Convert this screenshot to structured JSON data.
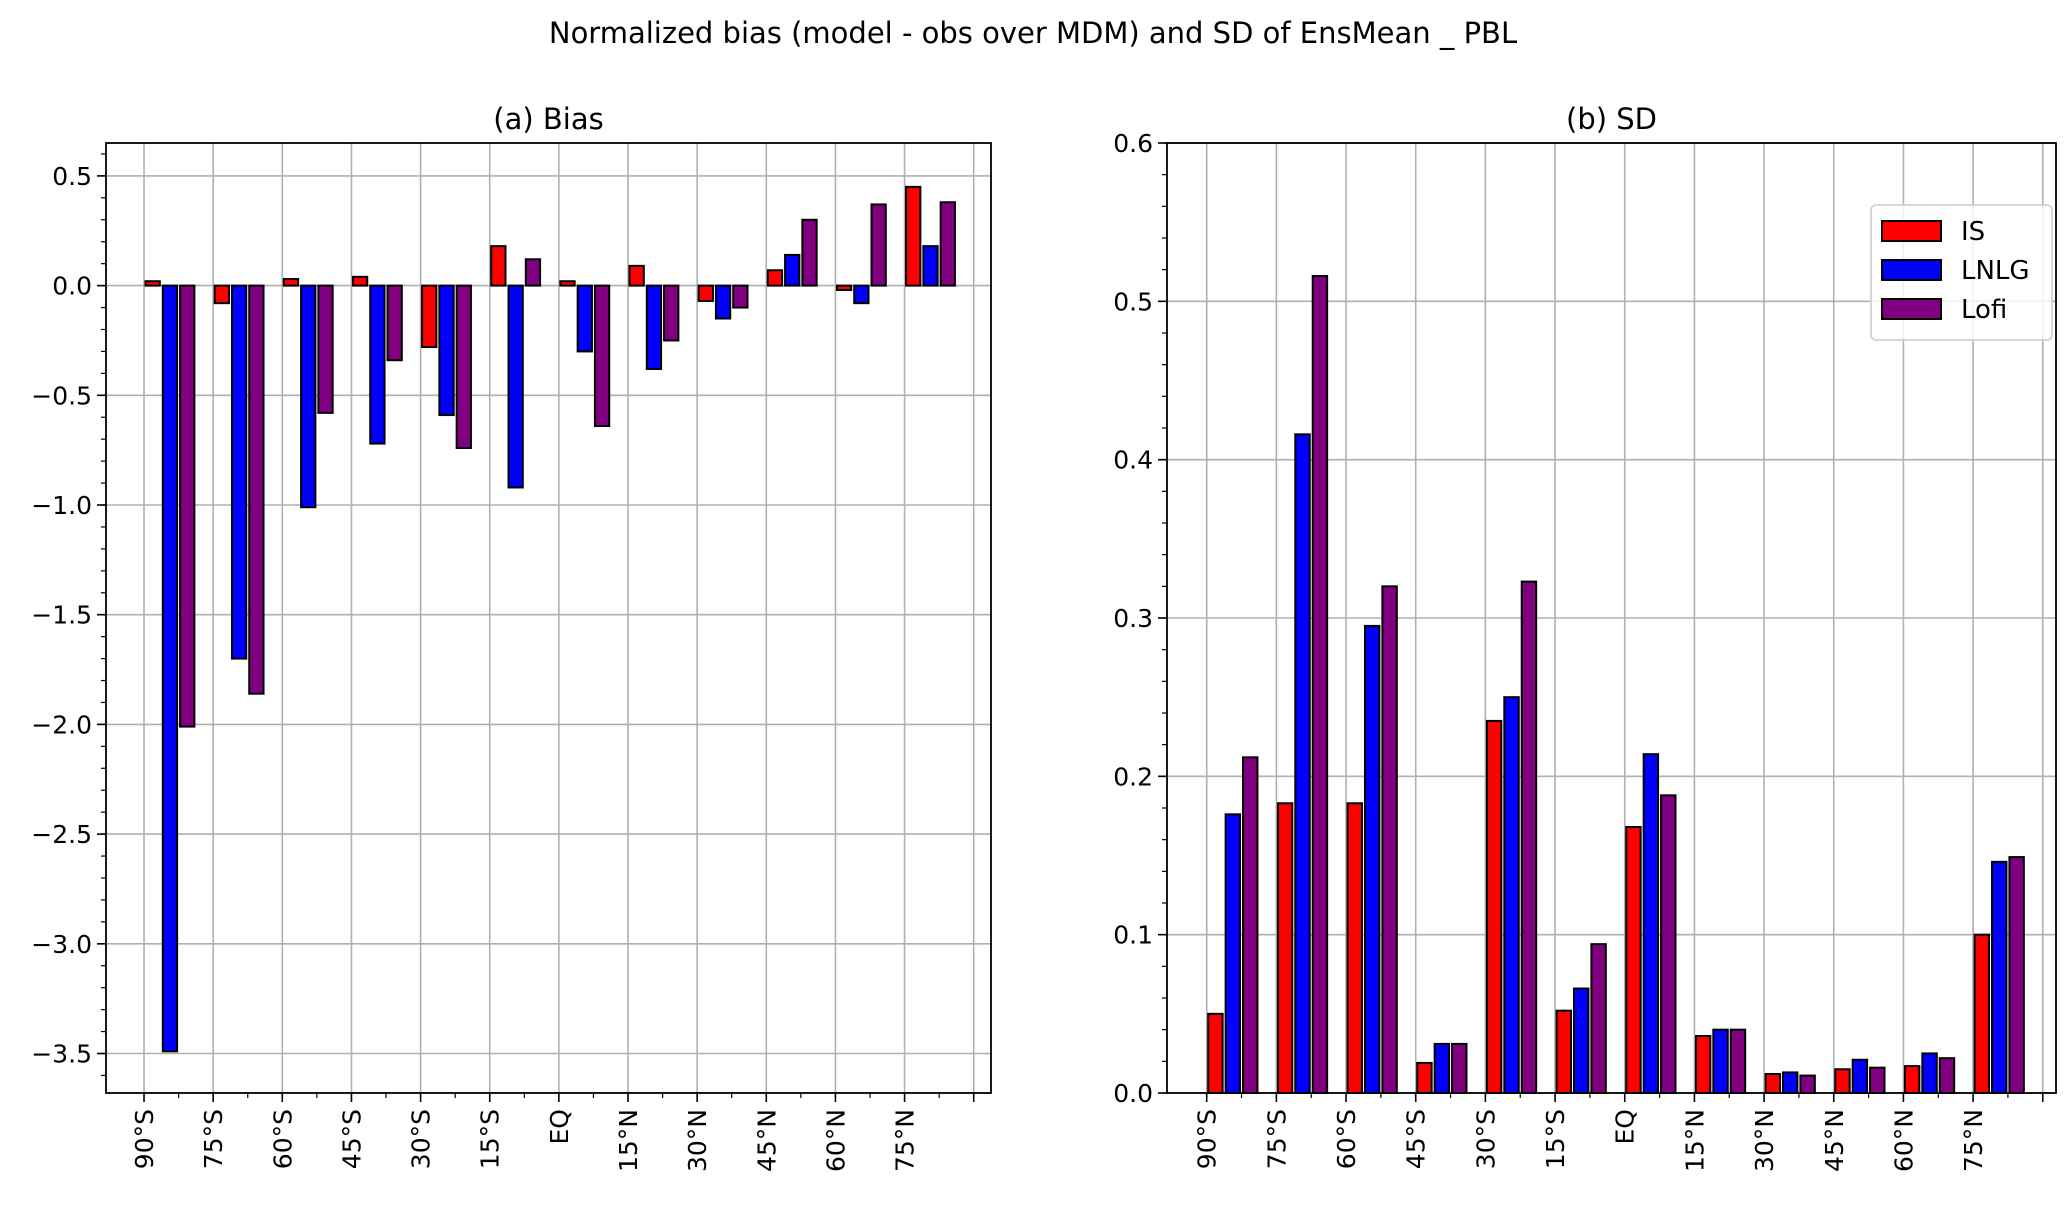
{
  "figure_title": "Normalized bias (model - obs over MDM) and SD of EnsMean _ PBL",
  "colors": {
    "IS": "#ff0000",
    "LNLG": "#0000ff",
    "Lofi": "#800080",
    "grid": "#b0b0b0",
    "edge": "#000000"
  },
  "chart_data": [
    {
      "type": "bar",
      "title": "(a) Bias",
      "xlabel": "",
      "ylabel": "",
      "categories": [
        "90°S",
        "75°S",
        "60°S",
        "45°S",
        "30°S",
        "15°S",
        "EQ",
        "15°N",
        "30°N",
        "45°N",
        "60°N",
        "75°N"
      ],
      "extra_tick_count": 1,
      "ylim": [
        -3.68,
        0.65
      ],
      "xlim": [
        -0.55,
        12.25
      ],
      "yticks": [
        -3.5,
        -3.0,
        -2.5,
        -2.0,
        -1.5,
        -1.0,
        -0.5,
        0.0,
        0.5
      ],
      "ytick_labels": [
        "−3.5",
        "−3.0",
        "−2.5",
        "−2.0",
        "−1.5",
        "−1.0",
        "−0.5",
        "0.0",
        "0.5"
      ],
      "yminor_step": 0.1,
      "grid": true,
      "legend": null,
      "series": [
        {
          "name": "IS",
          "values": [
            0.02,
            -0.08,
            0.03,
            0.04,
            -0.28,
            0.18,
            0.02,
            0.09,
            -0.07,
            0.07,
            -0.02,
            0.45
          ]
        },
        {
          "name": "LNLG",
          "values": [
            -3.49,
            -1.7,
            -1.01,
            -0.72,
            -0.59,
            -0.92,
            -0.3,
            -0.38,
            -0.15,
            0.14,
            -0.08,
            0.18
          ]
        },
        {
          "name": "Lofi",
          "values": [
            -2.01,
            -1.86,
            -0.58,
            -0.34,
            -0.74,
            0.12,
            -0.64,
            -0.25,
            -0.1,
            0.3,
            0.37,
            0.38
          ]
        }
      ]
    },
    {
      "type": "bar",
      "title": "(b) SD",
      "xlabel": "",
      "ylabel": "",
      "categories": [
        "90°S",
        "75°S",
        "60°S",
        "45°S",
        "30°S",
        "15°S",
        "EQ",
        "15°N",
        "30°N",
        "45°N",
        "60°N",
        "75°N"
      ],
      "extra_tick_count": 1,
      "ylim": [
        0,
        0.6
      ],
      "xlim": [
        -0.57,
        12.19
      ],
      "yticks": [
        0.0,
        0.1,
        0.2,
        0.3,
        0.4,
        0.5,
        0.6
      ],
      "ytick_labels": [
        "0.0",
        "0.1",
        "0.2",
        "0.3",
        "0.4",
        "0.5",
        "0.6"
      ],
      "yminor_step": 0.02,
      "grid": true,
      "legend": "upper right",
      "series": [
        {
          "name": "IS",
          "values": [
            0.05,
            0.183,
            0.183,
            0.019,
            0.235,
            0.052,
            0.168,
            0.036,
            0.012,
            0.015,
            0.017,
            0.1
          ]
        },
        {
          "name": "LNLG",
          "values": [
            0.176,
            0.416,
            0.295,
            0.031,
            0.25,
            0.066,
            0.214,
            0.04,
            0.013,
            0.021,
            0.025,
            0.146
          ]
        },
        {
          "name": "Lofi",
          "values": [
            0.212,
            0.516,
            0.32,
            0.031,
            0.323,
            0.094,
            0.188,
            0.04,
            0.011,
            0.016,
            0.022,
            0.149
          ]
        }
      ]
    }
  ]
}
